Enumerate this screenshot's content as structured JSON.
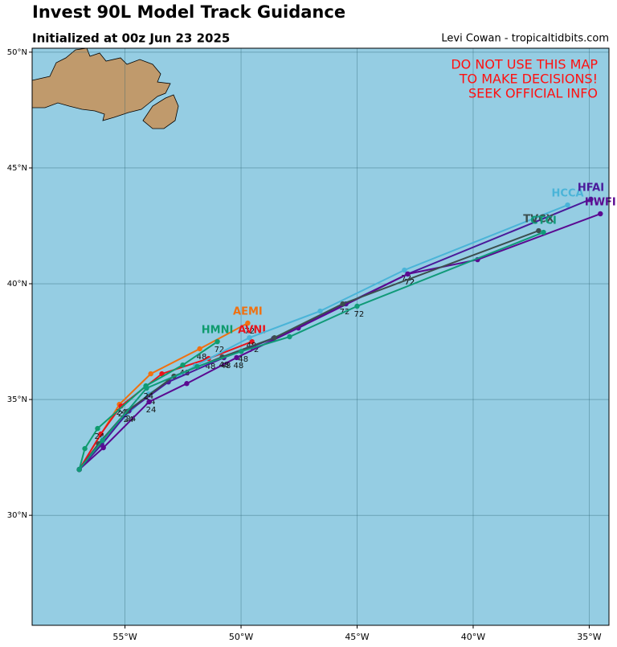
{
  "chart_data": {
    "type": "track-map",
    "title": "Invest 90L Model Track Guidance",
    "subtitle": "Initialized at 00z Jun 23 2025",
    "credit": "Levi Cowan - tropicaltidbits.com",
    "warning": [
      "DO NOT USE THIS MAP",
      "TO MAKE DECISIONS!",
      "SEEK OFFICIAL INFO"
    ],
    "xlim": [
      -59,
      -34.15
    ],
    "ylim": [
      25.25,
      50.17
    ],
    "xticks": [
      {
        "value": -55,
        "label": "55°W"
      },
      {
        "value": -50,
        "label": "50°W"
      },
      {
        "value": -45,
        "label": "45°W"
      },
      {
        "value": -40,
        "label": "40°W"
      },
      {
        "value": -35,
        "label": "35°W"
      }
    ],
    "yticks": [
      {
        "value": 30,
        "label": "30°N"
      },
      {
        "value": 35,
        "label": "35°N"
      },
      {
        "value": 40,
        "label": "40°N"
      },
      {
        "value": 45,
        "label": "45°N"
      },
      {
        "value": 50,
        "label": "50°N"
      }
    ],
    "grid": true,
    "labeled_hours": [
      24,
      48,
      72
    ],
    "series": [
      {
        "name": "AEMI",
        "color": "#f07010",
        "hours": [
          0,
          24,
          36,
          48,
          72
        ],
        "lon": [
          -56.97,
          -55.24,
          -53.89,
          -51.78,
          -49.71
        ],
        "lat": [
          31.98,
          34.79,
          36.11,
          37.19,
          38.3
        ]
      },
      {
        "name": "AVNI",
        "color": "#e8141c",
        "hours": [
          0,
          12,
          24,
          36,
          48,
          72
        ],
        "lon": [
          -56.97,
          -56.04,
          -55.17,
          -53.41,
          -51.4,
          -49.53
        ],
        "lat": [
          31.98,
          33.51,
          34.72,
          36.11,
          36.77,
          37.5
        ]
      },
      {
        "name": "HMNI",
        "color": "#0f9b6e",
        "hours": [
          0,
          12,
          24,
          36,
          48,
          72
        ],
        "lon": [
          -56.97,
          -56.73,
          -56.18,
          -54.1,
          -52.51,
          -51.02
        ],
        "lat": [
          31.98,
          32.88,
          33.75,
          35.59,
          36.49,
          37.5
        ]
      },
      {
        "name": "HCCA",
        "color": "#4ab4d8",
        "hours": [
          0,
          12,
          24,
          36,
          48,
          60,
          72,
          96
        ],
        "lon": [
          -56.97,
          -55.93,
          -53.99,
          -51.96,
          -49.64,
          -46.59,
          -42.96,
          -35.93
        ],
        "lat": [
          31.98,
          33.33,
          35.24,
          36.46,
          37.67,
          38.82,
          40.59,
          43.4
        ]
      },
      {
        "name": "HFAI",
        "color": "#4a1a9a",
        "hours": [
          0,
          12,
          24,
          36,
          48,
          60,
          66,
          72,
          96
        ],
        "lon": [
          -56.97,
          -56.0,
          -54.83,
          -53.13,
          -50.74,
          -48.6,
          -45.48,
          -42.82,
          -34.93
        ],
        "lat": [
          31.98,
          33.06,
          34.51,
          35.76,
          36.81,
          37.64,
          39.13,
          40.42,
          43.65
        ]
      },
      {
        "name": "HWFI",
        "color": "#5b0a91",
        "hours": [
          0,
          12,
          24,
          36,
          48,
          60,
          72,
          84,
          96
        ],
        "lon": [
          -56.97,
          -55.93,
          -53.96,
          -52.34,
          -50.19,
          -47.53,
          -42.82,
          -39.81,
          -34.52
        ],
        "lat": [
          31.98,
          32.92,
          34.9,
          35.69,
          36.81,
          38.09,
          40.42,
          41.04,
          43.02
        ]
      },
      {
        "name": "TVCX",
        "color": "#3c4e4e",
        "hours": [
          0,
          12,
          24,
          36,
          48,
          60,
          72,
          96
        ],
        "lon": [
          -56.97,
          -56.14,
          -54.93,
          -52.89,
          -50.81,
          -48.56,
          -45.62,
          -37.18
        ],
        "lat": [
          31.98,
          33.09,
          34.48,
          36.01,
          36.84,
          37.67,
          39.13,
          42.29
        ]
      },
      {
        "name": "CTCI",
        "color": "#109a78",
        "hours": [
          0,
          12,
          24,
          36,
          48,
          60,
          72,
          96
        ],
        "lon": [
          -56.97,
          -55.97,
          -54.07,
          -51.89,
          -49.99,
          -47.91,
          -45.0,
          -36.97
        ],
        "lat": [
          31.98,
          33.23,
          35.49,
          36.42,
          37.08,
          37.71,
          39.03,
          42.22
        ]
      }
    ]
  }
}
